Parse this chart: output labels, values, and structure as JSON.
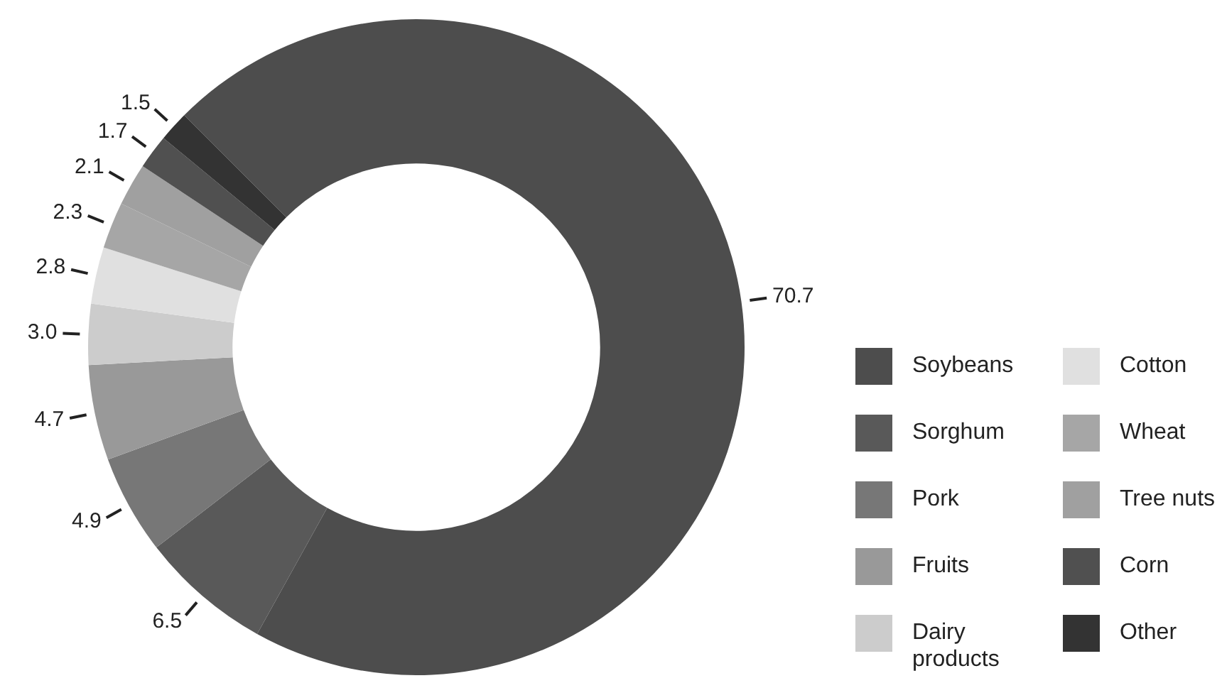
{
  "chart_data": {
    "type": "donut",
    "categories": [
      "Soybeans",
      "Sorghum",
      "Pork",
      "Fruits",
      "Dairy products",
      "Cotton",
      "Wheat",
      "Tree nuts",
      "Corn",
      "Other"
    ],
    "values": [
      70.7,
      6.5,
      4.9,
      4.7,
      3.0,
      2.8,
      2.3,
      2.1,
      1.7,
      1.5
    ],
    "colors": [
      "#4d4d4d",
      "#595959",
      "#777777",
      "#999999",
      "#cccccc",
      "#e0e0e0",
      "#a6a6a6",
      "#a0a0a0",
      "#505050",
      "#333333"
    ],
    "value_labels": [
      "70.7",
      "6.5",
      "4.9",
      "4.7",
      "3.0",
      "2.8",
      "2.3",
      "2.1",
      "1.7",
      "1.5"
    ],
    "legend": "right"
  }
}
